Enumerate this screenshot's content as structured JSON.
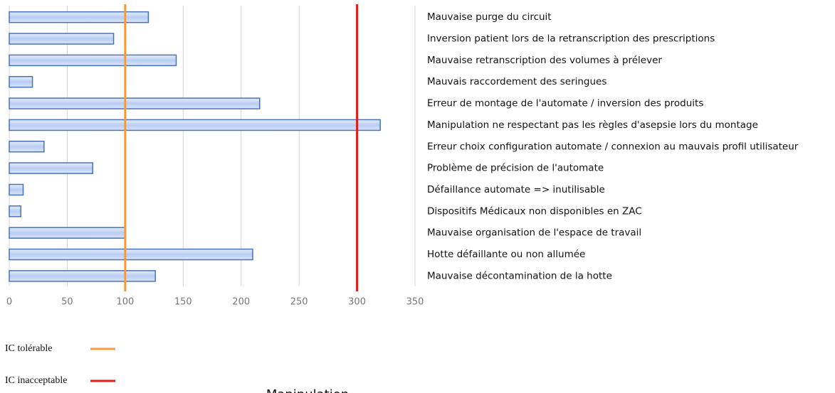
{
  "chart_data": {
    "type": "bar",
    "orientation": "horizontal",
    "categories": [
      "Mauvaise purge du circuit",
      " Inversion patient lors de la retranscription des prescriptions",
      "Mauvaise retranscription des volumes à prélever",
      "Mauvais raccordement des seringues",
      "Erreur de montage de l'automate / inversion des produits",
      "Manipulation ne respectant pas les règles d'asepsie lors du montage",
      "Erreur choix configuration automate / connexion au mauvais profil utilisateur",
      "Problème de précision de l'automate",
      "Défaillance automate => inutilisable",
      "Dispositifs Médicaux non disponibles en ZAC",
      "Mauvaise organisation de l'espace de travail",
      "Hotte défaillante ou non allumée",
      "Mauvaise décontamination de la hotte"
    ],
    "values": [
      120,
      90,
      144,
      20,
      216,
      320,
      30,
      72,
      12,
      10,
      100,
      210,
      126
    ],
    "color": "#4a72b8",
    "xlim": [
      0,
      350
    ],
    "xticks": [
      0,
      50,
      100,
      150,
      200,
      250,
      300,
      350
    ],
    "grid": true,
    "thresholds": [
      {
        "name": "IC tolérable",
        "value": 100,
        "color": "#f39a3c"
      },
      {
        "name": "IC inacceptable",
        "value": 300,
        "color": "#e31b1b"
      }
    ],
    "subtitle": "Manipulation"
  }
}
